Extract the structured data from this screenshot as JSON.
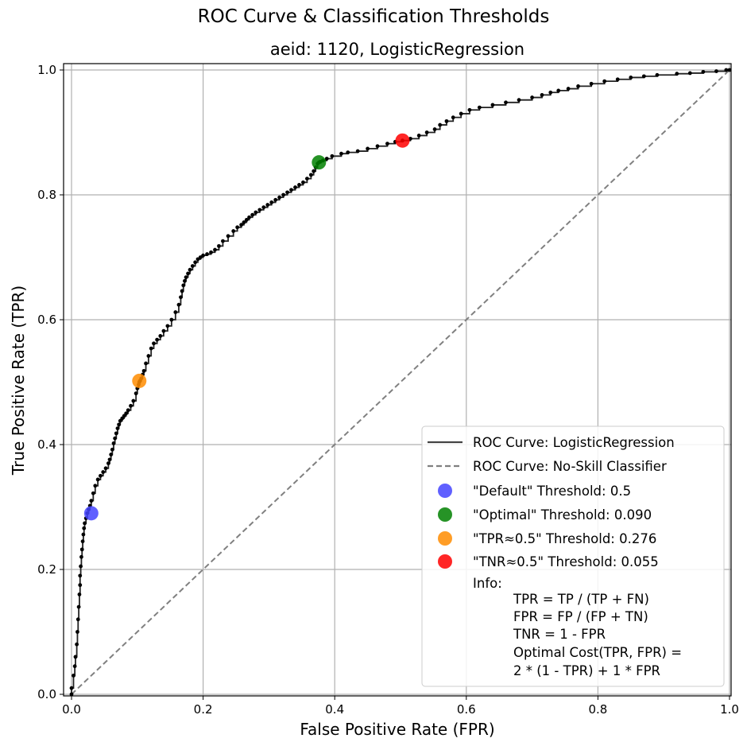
{
  "chart_data": {
    "type": "line",
    "title": "ROC Curve & Classification Thresholds",
    "subtitle": "aeid: 1120, LogisticRegression",
    "xlabel": "False Positive Rate (FPR)",
    "ylabel": "True Positive Rate (TPR)",
    "xlim": [
      0.0,
      1.0
    ],
    "ylim": [
      0.0,
      1.0
    ],
    "xticks": [
      "0.0",
      "0.2",
      "0.4",
      "0.6",
      "0.8",
      "1.0"
    ],
    "yticks": [
      "0.0",
      "0.2",
      "0.4",
      "0.6",
      "0.8",
      "1.0"
    ],
    "grid": true,
    "legend_position": "lower-right",
    "series": [
      {
        "name": "ROC Curve: LogisticRegression",
        "style": "solid",
        "color": "#000000",
        "x": [
          0.0,
          0.0,
          0.003,
          0.005,
          0.006,
          0.008,
          0.009,
          0.01,
          0.011,
          0.012,
          0.013,
          0.013,
          0.014,
          0.015,
          0.016,
          0.017,
          0.018,
          0.019,
          0.02,
          0.022,
          0.024,
          0.026,
          0.028,
          0.03,
          0.033,
          0.036,
          0.04,
          0.044,
          0.048,
          0.052,
          0.056,
          0.058,
          0.06,
          0.062,
          0.064,
          0.066,
          0.068,
          0.07,
          0.072,
          0.074,
          0.077,
          0.08,
          0.083,
          0.086,
          0.09,
          0.094,
          0.098,
          0.1,
          0.102,
          0.103,
          0.104,
          0.106,
          0.108,
          0.11,
          0.113,
          0.117,
          0.121,
          0.125,
          0.13,
          0.135,
          0.14,
          0.146,
          0.152,
          0.158,
          0.163,
          0.166,
          0.168,
          0.17,
          0.172,
          0.174,
          0.177,
          0.18,
          0.184,
          0.188,
          0.192,
          0.196,
          0.2,
          0.206,
          0.212,
          0.218,
          0.224,
          0.23,
          0.238,
          0.246,
          0.252,
          0.258,
          0.262,
          0.266,
          0.27,
          0.275,
          0.28,
          0.286,
          0.292,
          0.298,
          0.304,
          0.31,
          0.316,
          0.322,
          0.328,
          0.334,
          0.34,
          0.346,
          0.352,
          0.358,
          0.364,
          0.368,
          0.371,
          0.374,
          0.376,
          0.378,
          0.382,
          0.388,
          0.396,
          0.41,
          0.42,
          0.435,
          0.45,
          0.465,
          0.48,
          0.492,
          0.503,
          0.515,
          0.528,
          0.54,
          0.552,
          0.56,
          0.57,
          0.58,
          0.592,
          0.605,
          0.62,
          0.64,
          0.66,
          0.68,
          0.7,
          0.715,
          0.728,
          0.74,
          0.755,
          0.77,
          0.79,
          0.81,
          0.83,
          0.85,
          0.87,
          0.89,
          0.92,
          0.94,
          0.96,
          0.98,
          0.995,
          1.0
        ],
        "y": [
          0.0,
          0.01,
          0.03,
          0.045,
          0.06,
          0.08,
          0.1,
          0.12,
          0.14,
          0.16,
          0.175,
          0.19,
          0.205,
          0.22,
          0.232,
          0.245,
          0.256,
          0.266,
          0.274,
          0.282,
          0.29,
          0.296,
          0.302,
          0.31,
          0.322,
          0.334,
          0.344,
          0.35,
          0.356,
          0.362,
          0.37,
          0.376,
          0.384,
          0.392,
          0.402,
          0.41,
          0.418,
          0.426,
          0.432,
          0.438,
          0.442,
          0.446,
          0.45,
          0.455,
          0.462,
          0.47,
          0.482,
          0.49,
          0.496,
          0.5,
          0.502,
          0.506,
          0.512,
          0.518,
          0.53,
          0.542,
          0.554,
          0.562,
          0.568,
          0.574,
          0.582,
          0.59,
          0.6,
          0.612,
          0.624,
          0.636,
          0.646,
          0.655,
          0.662,
          0.668,
          0.674,
          0.68,
          0.686,
          0.692,
          0.697,
          0.7,
          0.703,
          0.705,
          0.708,
          0.712,
          0.718,
          0.726,
          0.734,
          0.742,
          0.748,
          0.752,
          0.756,
          0.76,
          0.764,
          0.768,
          0.772,
          0.776,
          0.78,
          0.784,
          0.788,
          0.792,
          0.796,
          0.8,
          0.804,
          0.808,
          0.812,
          0.816,
          0.82,
          0.826,
          0.832,
          0.838,
          0.844,
          0.85,
          0.852,
          0.853,
          0.855,
          0.858,
          0.862,
          0.866,
          0.868,
          0.87,
          0.874,
          0.878,
          0.882,
          0.885,
          0.887,
          0.89,
          0.895,
          0.9,
          0.905,
          0.912,
          0.918,
          0.924,
          0.93,
          0.936,
          0.94,
          0.944,
          0.948,
          0.952,
          0.956,
          0.96,
          0.964,
          0.967,
          0.97,
          0.974,
          0.978,
          0.982,
          0.985,
          0.988,
          0.99,
          0.992,
          0.994,
          0.995,
          0.997,
          0.998,
          1.0,
          1.0
        ]
      },
      {
        "name": "ROC Curve: No-Skill Classifier",
        "style": "dashed",
        "color": "#808080",
        "x": [
          0.0,
          1.0
        ],
        "y": [
          0.0,
          1.0
        ]
      }
    ],
    "thresholds": [
      {
        "name": "\"Default\" Threshold: 0.5",
        "color": "#4444ff",
        "fpr": 0.03,
        "tpr": 0.29
      },
      {
        "name": "\"Optimal\" Threshold: 0.090",
        "color": "#008000",
        "fpr": 0.376,
        "tpr": 0.852
      },
      {
        "name": "\"TPR≈0.5\" Threshold: 0.276",
        "color": "#ff8c00",
        "fpr": 0.103,
        "tpr": 0.502
      },
      {
        "name": "\"TNR≈0.5\" Threshold: 0.055",
        "color": "#ff0000",
        "fpr": 0.503,
        "tpr": 0.887
      }
    ],
    "info": {
      "heading": "Info:",
      "lines": [
        "TPR = TP / (TP + FN)",
        "FPR = FP / (FP + TN)",
        "TNR = 1 - FPR",
        "Optimal Cost(TPR, FPR) =",
        "2 * (1 - TPR) + 1 * FPR"
      ]
    }
  }
}
